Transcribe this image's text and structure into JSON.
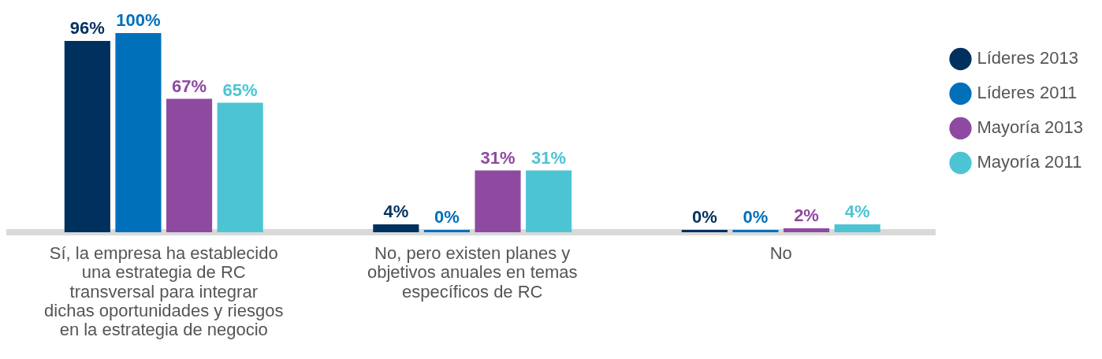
{
  "chart_data": {
    "type": "bar",
    "categories": [
      "Sí, la empresa ha establecido una estrategia de RC transversal para integrar dichas oportunidades y riesgos en la estrategia de negocio",
      "No, pero existen planes y objetivos anuales en temas específicos de RC",
      "No"
    ],
    "series": [
      {
        "name": "Líderes 2013",
        "color": "#00305e",
        "values": [
          96,
          4,
          0
        ],
        "value_labels": [
          "96%",
          "4%",
          "0%"
        ]
      },
      {
        "name": "Líderes 2011",
        "color": "#0070bb",
        "values": [
          100,
          0,
          0
        ],
        "value_labels": [
          "100%",
          "0%",
          "0%"
        ]
      },
      {
        "name": "Mayoría 2013",
        "color": "#8e4aa0",
        "values": [
          67,
          31,
          2
        ],
        "value_labels": [
          "67%",
          "31%",
          "2%"
        ]
      },
      {
        "name": "Mayoría 2011",
        "color": "#4cc4d4",
        "values": [
          65,
          31,
          4
        ],
        "value_labels": [
          "65%",
          "31%",
          "4%"
        ]
      }
    ],
    "legend": "top right",
    "grid": false
  }
}
